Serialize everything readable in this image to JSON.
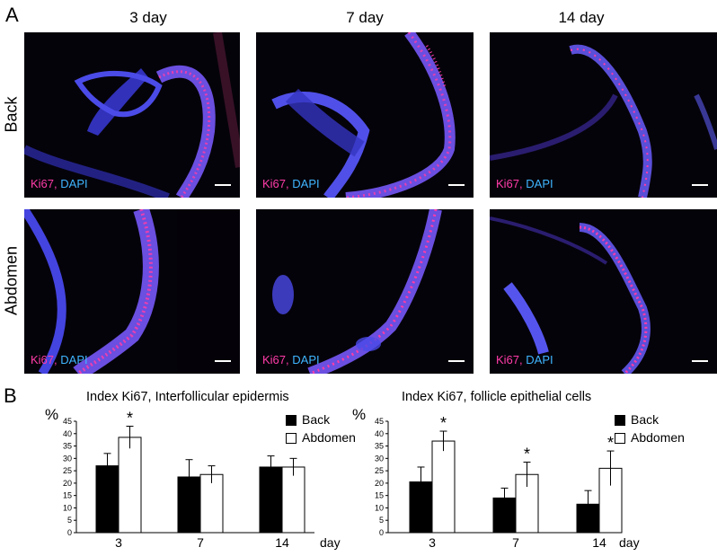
{
  "figure": {
    "panel_a_label": "A",
    "panel_b_label": "B",
    "columns": [
      "3 day",
      "7 day",
      "14 day"
    ],
    "rows": [
      "Back",
      "Abdomen"
    ],
    "stain": {
      "marker": "Ki67",
      "separator": ",",
      "counterstain": "DAPI"
    },
    "colors": {
      "ki67": "#ff3ca8",
      "dapi": "#3fb6ff",
      "background": "#05030a"
    }
  },
  "chart_data": [
    {
      "type": "bar",
      "title": "Index Ki67, Interfollicular epidermis",
      "ylabel": "%",
      "xlabel": "day",
      "categories": [
        "3",
        "7",
        "14"
      ],
      "series": [
        {
          "name": "Back",
          "values": [
            27,
            22.5,
            26.5
          ],
          "errors": [
            5,
            7,
            4.5
          ],
          "color": "#000000"
        },
        {
          "name": "Abdomen",
          "values": [
            38.5,
            23.5,
            26.5
          ],
          "errors": [
            4.5,
            3.5,
            3.5
          ],
          "color": "#ffffff"
        }
      ],
      "significance": [
        "*",
        "",
        ""
      ],
      "ylim": [
        0,
        45
      ],
      "yticks": [
        "0",
        "5",
        "10",
        "15",
        "20",
        "25",
        "30",
        "35",
        "40",
        "45"
      ],
      "legend": "top-right"
    },
    {
      "type": "bar",
      "title": "Index Ki67, follicle epithelial cells",
      "ylabel": "%",
      "xlabel": "day",
      "categories": [
        "3",
        "7",
        "14"
      ],
      "series": [
        {
          "name": "Back",
          "values": [
            20.5,
            14,
            11.5
          ],
          "errors": [
            6,
            4,
            5.5
          ],
          "color": "#000000"
        },
        {
          "name": "Abdomen",
          "values": [
            37,
            23.5,
            26
          ],
          "errors": [
            4,
            5,
            7
          ],
          "color": "#ffffff"
        }
      ],
      "significance": [
        "*",
        "*",
        "*"
      ],
      "ylim": [
        0,
        45
      ],
      "yticks": [
        "0",
        "5",
        "10",
        "15",
        "20",
        "25",
        "30",
        "35",
        "40",
        "45"
      ],
      "legend": "top-right"
    }
  ]
}
